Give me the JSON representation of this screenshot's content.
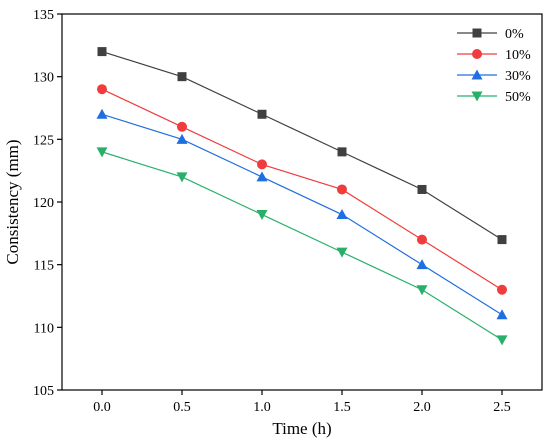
{
  "chart_data": {
    "type": "line",
    "xlabel": "Time (h)",
    "ylabel": "Consistency (mm)",
    "xlim": [
      -0.25,
      2.75
    ],
    "ylim": [
      105,
      135
    ],
    "xticks": [
      "0.0",
      "0.5",
      "1.0",
      "1.5",
      "2.0",
      "2.5"
    ],
    "yticks": [
      "105",
      "110",
      "115",
      "120",
      "125",
      "130",
      "135"
    ],
    "x": [
      0.0,
      0.5,
      1.0,
      1.5,
      2.0,
      2.5
    ],
    "grid": false,
    "legend_position": "top-right",
    "series": [
      {
        "name": "0%",
        "marker": "square",
        "color": "#404040",
        "values": [
          132,
          130,
          127,
          124,
          121,
          117
        ]
      },
      {
        "name": "10%",
        "marker": "circle",
        "color": "#f03c3c",
        "values": [
          129,
          126,
          123,
          121,
          117,
          113
        ]
      },
      {
        "name": "30%",
        "marker": "triangle-up",
        "color": "#1f6fe0",
        "values": [
          127,
          125,
          122,
          119,
          115,
          111
        ]
      },
      {
        "name": "50%",
        "marker": "triangle-down",
        "color": "#28b06a",
        "values": [
          124,
          122,
          119,
          116,
          113,
          109
        ]
      }
    ]
  }
}
